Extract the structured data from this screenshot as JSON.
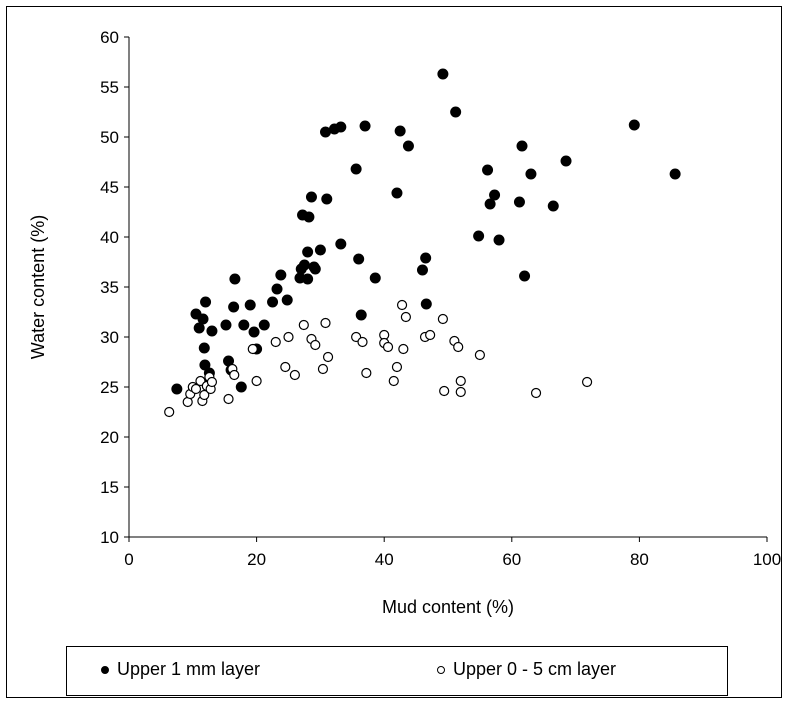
{
  "chart_data": {
    "type": "scatter",
    "title": "",
    "xlabel": "Mud content (%)",
    "ylabel": "Water content (%)",
    "xlim": [
      0,
      100
    ],
    "ylim": [
      10,
      60
    ],
    "xticks": [
      "0",
      "20",
      "40",
      "60",
      "80",
      "100"
    ],
    "yticks": [
      "10",
      "15",
      "20",
      "25",
      "30",
      "35",
      "40",
      "45",
      "50",
      "55",
      "60"
    ],
    "grid": false,
    "legend_position": "bottom",
    "series": [
      {
        "name": "Upper 1 mm layer",
        "marker": "filled-circle",
        "color": "#000000",
        "points": [
          [
            7.5,
            24.8
          ],
          [
            10.5,
            32.3
          ],
          [
            11.0,
            30.9
          ],
          [
            11.6,
            31.8
          ],
          [
            11.8,
            28.9
          ],
          [
            11.9,
            27.2
          ],
          [
            12.0,
            33.5
          ],
          [
            12.2,
            25.3
          ],
          [
            12.6,
            26.4
          ],
          [
            13.0,
            30.6
          ],
          [
            15.2,
            31.2
          ],
          [
            15.6,
            27.6
          ],
          [
            16.0,
            26.7
          ],
          [
            16.4,
            33.0
          ],
          [
            16.6,
            35.8
          ],
          [
            17.6,
            25.0
          ],
          [
            18.0,
            31.2
          ],
          [
            19.0,
            33.2
          ],
          [
            19.6,
            30.5
          ],
          [
            20.0,
            28.8
          ],
          [
            21.2,
            31.2
          ],
          [
            22.5,
            33.5
          ],
          [
            23.2,
            34.8
          ],
          [
            23.8,
            36.2
          ],
          [
            24.8,
            33.7
          ],
          [
            26.8,
            35.9
          ],
          [
            27.0,
            36.8
          ],
          [
            27.2,
            42.2
          ],
          [
            27.5,
            37.2
          ],
          [
            28.0,
            38.5
          ],
          [
            28.0,
            35.8
          ],
          [
            28.2,
            42.0
          ],
          [
            28.6,
            44.0
          ],
          [
            29.0,
            37.0
          ],
          [
            29.2,
            36.8
          ],
          [
            30.0,
            38.7
          ],
          [
            30.8,
            50.5
          ],
          [
            31.0,
            43.8
          ],
          [
            32.2,
            50.8
          ],
          [
            33.2,
            51.0
          ],
          [
            33.2,
            39.3
          ],
          [
            35.6,
            46.8
          ],
          [
            36.0,
            37.8
          ],
          [
            36.4,
            32.2
          ],
          [
            37.0,
            51.1
          ],
          [
            38.6,
            35.9
          ],
          [
            42.0,
            44.4
          ],
          [
            42.5,
            50.6
          ],
          [
            43.8,
            49.1
          ],
          [
            46.0,
            36.7
          ],
          [
            46.5,
            37.9
          ],
          [
            46.6,
            33.3
          ],
          [
            49.2,
            56.3
          ],
          [
            51.2,
            52.5
          ],
          [
            54.8,
            40.1
          ],
          [
            56.2,
            46.7
          ],
          [
            56.6,
            43.3
          ],
          [
            57.3,
            44.2
          ],
          [
            58.0,
            39.7
          ],
          [
            61.2,
            43.5
          ],
          [
            61.6,
            49.1
          ],
          [
            62.0,
            36.1
          ],
          [
            63.0,
            46.3
          ],
          [
            66.5,
            43.1
          ],
          [
            68.5,
            47.6
          ],
          [
            79.2,
            51.2
          ],
          [
            85.6,
            46.3
          ]
        ]
      },
      {
        "name": "Upper 0 - 5 cm layer",
        "marker": "open-circle",
        "color": "#000000",
        "points": [
          [
            6.3,
            22.5
          ],
          [
            9.2,
            23.5
          ],
          [
            9.6,
            24.3
          ],
          [
            10.0,
            25.0
          ],
          [
            10.5,
            24.8
          ],
          [
            11.2,
            25.6
          ],
          [
            11.5,
            23.6
          ],
          [
            11.8,
            24.2
          ],
          [
            12.2,
            25.1
          ],
          [
            12.6,
            26.0
          ],
          [
            12.8,
            24.8
          ],
          [
            13.0,
            25.5
          ],
          [
            15.6,
            23.8
          ],
          [
            16.2,
            26.8
          ],
          [
            16.5,
            26.2
          ],
          [
            19.4,
            28.8
          ],
          [
            20.0,
            25.6
          ],
          [
            23.0,
            29.5
          ],
          [
            24.5,
            27.0
          ],
          [
            25.0,
            30.0
          ],
          [
            26.0,
            26.2
          ],
          [
            27.4,
            31.2
          ],
          [
            28.6,
            29.8
          ],
          [
            29.2,
            29.2
          ],
          [
            30.4,
            26.8
          ],
          [
            30.8,
            31.4
          ],
          [
            31.2,
            28.0
          ],
          [
            35.6,
            30.0
          ],
          [
            36.6,
            29.5
          ],
          [
            37.2,
            26.4
          ],
          [
            40.0,
            30.2
          ],
          [
            40.0,
            29.4
          ],
          [
            40.6,
            29.0
          ],
          [
            41.5,
            25.6
          ],
          [
            42.0,
            27.0
          ],
          [
            42.8,
            33.2
          ],
          [
            43.0,
            28.8
          ],
          [
            43.4,
            32.0
          ],
          [
            46.4,
            30.0
          ],
          [
            47.2,
            30.2
          ],
          [
            49.2,
            31.8
          ],
          [
            49.4,
            24.6
          ],
          [
            51.0,
            29.6
          ],
          [
            51.6,
            29.0
          ],
          [
            52.0,
            25.6
          ],
          [
            52.0,
            24.5
          ],
          [
            55.0,
            28.2
          ],
          [
            63.8,
            24.4
          ],
          [
            71.8,
            25.5
          ]
        ]
      }
    ]
  }
}
